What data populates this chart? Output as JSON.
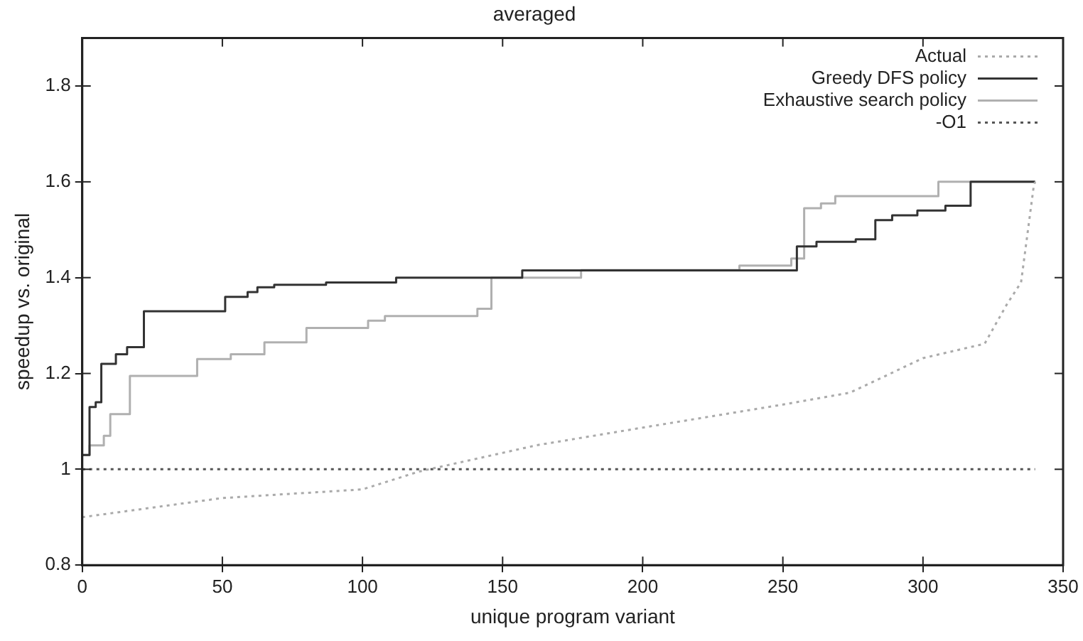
{
  "chart_data": {
    "type": "line",
    "title": "averaged",
    "xlabel": "unique program variant",
    "ylabel": "speedup vs. original",
    "xlim": [
      0,
      350
    ],
    "xticks": [
      0,
      50,
      100,
      150,
      200,
      250,
      300,
      350
    ],
    "ylim": [
      0.8,
      1.9
    ],
    "yticks": [
      0.8,
      1,
      1.2,
      1.4,
      1.6,
      1.8
    ],
    "grid": false,
    "legend": "top right",
    "marker": "none",
    "series": [
      {
        "name": "Actual",
        "type": "line",
        "line_style": "dotted",
        "color": "#aaaaaa",
        "x": [
          0,
          50,
          100,
          120,
          162,
          200,
          250,
          274,
          300,
          322,
          330,
          335,
          339.5,
          340
        ],
        "values": [
          0.9,
          0.94,
          0.958,
          0.995,
          1.05,
          1.087,
          1.135,
          1.16,
          1.232,
          1.262,
          1.345,
          1.39,
          1.59,
          1.6
        ]
      },
      {
        "name": "Greedy DFS policy",
        "type": "step",
        "line_style": "solid",
        "color": "#333333",
        "x": [
          0,
          2.6,
          4.8,
          6.8,
          12,
          16,
          22,
          51,
          59,
          62.5,
          68.5,
          87,
          112,
          157,
          255,
          262,
          276,
          283,
          289,
          298,
          308,
          317,
          340
        ],
        "values": [
          1.03,
          1.13,
          1.14,
          1.22,
          1.24,
          1.255,
          1.33,
          1.36,
          1.37,
          1.38,
          1.385,
          1.39,
          1.4,
          1.415,
          1.465,
          1.475,
          1.48,
          1.52,
          1.53,
          1.54,
          1.55,
          1.6,
          1.6
        ]
      },
      {
        "name": "Exhaustive search policy",
        "type": "step",
        "line_style": "solid",
        "color": "#b0b0b0",
        "x": [
          0,
          2.6,
          7.7,
          10,
          17,
          41,
          53,
          65,
          80,
          102,
          108,
          141,
          146,
          178,
          234.5,
          253,
          257.6,
          263.6,
          268.7,
          305.5,
          340
        ],
        "values": [
          1.03,
          1.05,
          1.07,
          1.115,
          1.195,
          1.23,
          1.24,
          1.265,
          1.295,
          1.31,
          1.32,
          1.335,
          1.4,
          1.416,
          1.425,
          1.44,
          1.545,
          1.555,
          1.57,
          1.6,
          1.6
        ]
      },
      {
        "name": "-O1",
        "type": "line",
        "line_style": "dotted",
        "color": "#555555",
        "x": [
          0,
          340
        ],
        "values": [
          1,
          1
        ]
      }
    ]
  }
}
